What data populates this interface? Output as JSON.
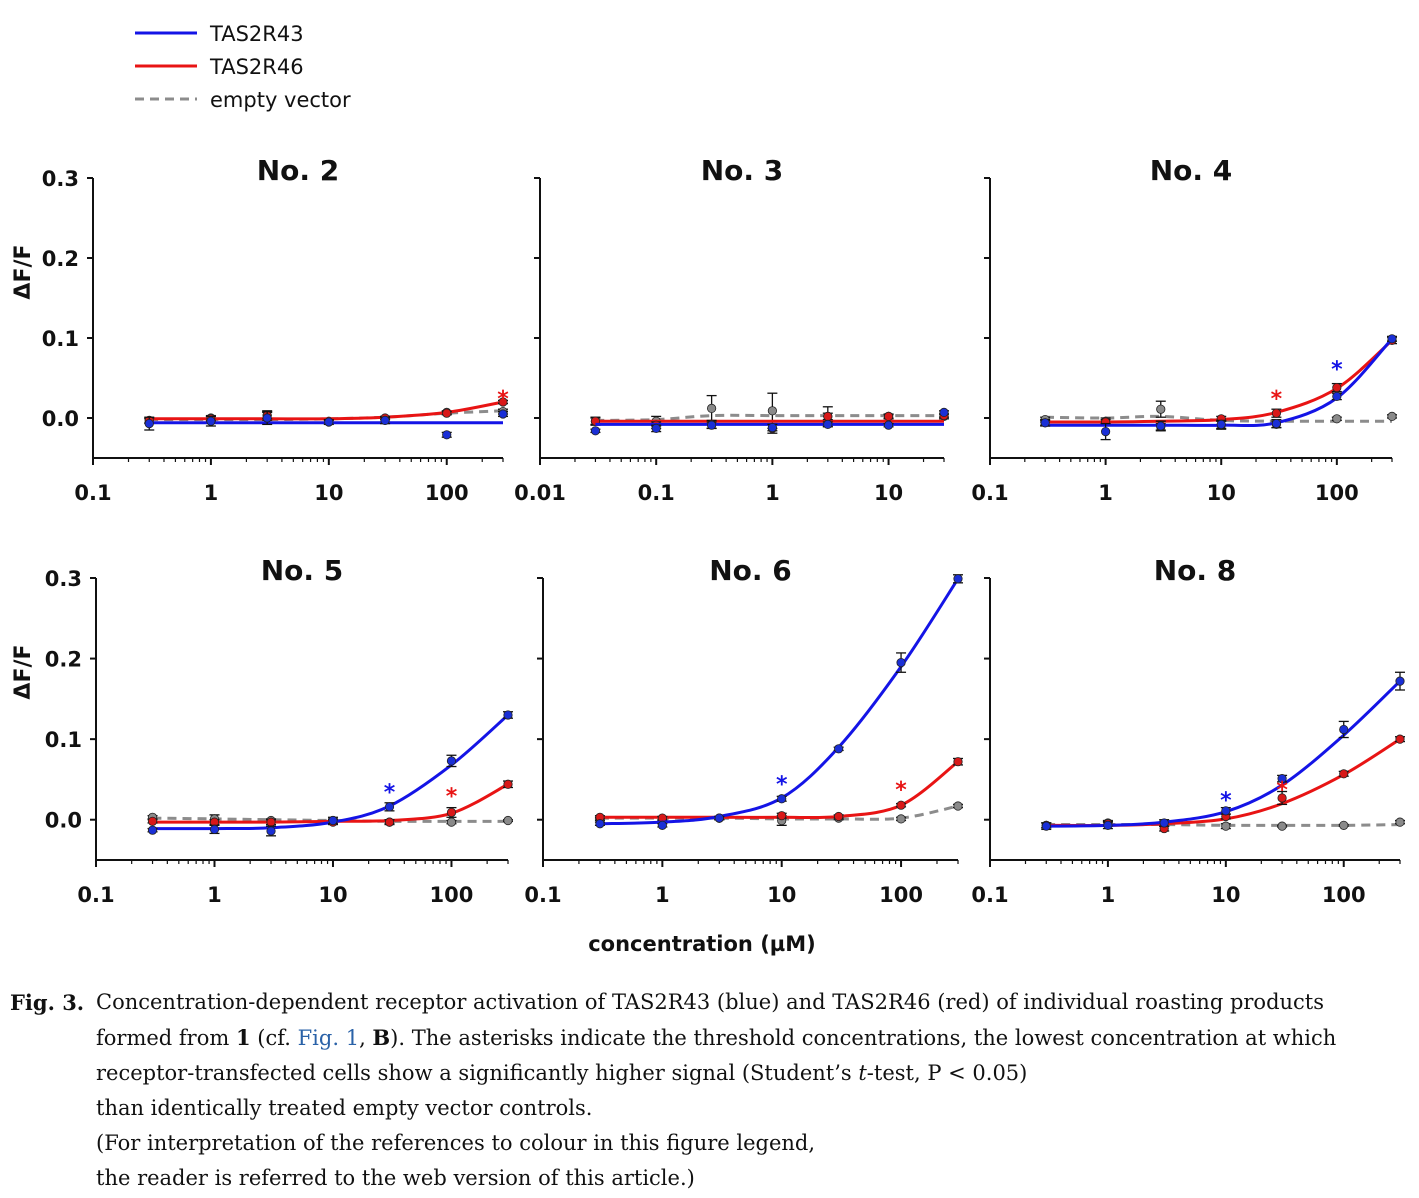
{
  "legend": [
    {
      "name": "TAS2R43",
      "color": "#1414e6",
      "style": "solid"
    },
    {
      "name": "TAS2R46",
      "color": "#e81414",
      "style": "solid"
    },
    {
      "name": "empty vector",
      "color": "#8c8c8c",
      "style": "dashed"
    }
  ],
  "y_axis_title": "ΔF/F",
  "x_axis_title": "concentration (µM)",
  "y_ticks": [
    "0.3",
    "0.2",
    "0.1",
    "0.0"
  ],
  "chart_data": [
    {
      "type": "scatter-line",
      "title": "No. 2",
      "xscale": "log",
      "xlim": [
        0.1,
        300
      ],
      "ylim": [
        -0.05,
        0.3
      ],
      "xtick_labels": [
        "0.1",
        "1",
        "10",
        "100"
      ],
      "x": [
        0.3,
        1,
        3,
        10,
        30,
        100,
        300
      ],
      "series": [
        {
          "name": "TAS2R43",
          "points": [
            -0.007,
            -0.004,
            0.0,
            -0.005,
            -0.003,
            -0.021,
            0.005
          ],
          "errors": [
            0.008,
            0.006,
            0.008,
            0.003,
            0.004,
            0.003,
            0.003
          ],
          "curve": [
            -0.006,
            -0.006,
            -0.006,
            -0.006,
            -0.006,
            -0.006,
            -0.006
          ]
        },
        {
          "name": "TAS2R46",
          "points": [
            -0.003,
            -0.001,
            0.003,
            -0.005,
            0.0,
            0.006,
            0.02
          ],
          "errors": [
            0.003,
            0.003,
            0.004,
            0.002,
            0.002,
            0.002,
            0.002
          ],
          "curve": [
            -0.001,
            -0.001,
            -0.001,
            -0.001,
            0.001,
            0.007,
            0.02
          ]
        },
        {
          "name": "empty vector",
          "points": [
            -0.004,
            0.0,
            0.003,
            -0.004,
            -0.003,
            0.007,
            0.008
          ],
          "errors": [
            0.003,
            0.003,
            0.006,
            0.002,
            0.002,
            0.002,
            0.003
          ],
          "curve": [
            -0.002,
            -0.002,
            -0.002,
            -0.001,
            0.001,
            0.006,
            0.009
          ]
        }
      ],
      "annotations": [
        {
          "text": "*",
          "x": 300,
          "y": 0.03,
          "series": "TAS2R46"
        }
      ]
    },
    {
      "type": "scatter-line",
      "title": "No. 3",
      "xscale": "log",
      "xlim": [
        0.01,
        30
      ],
      "ylim": [
        -0.05,
        0.3
      ],
      "xtick_labels": [
        "0.01",
        "0.1",
        "1",
        "10"
      ],
      "x": [
        0.03,
        0.1,
        0.3,
        1,
        3,
        10,
        30
      ],
      "series": [
        {
          "name": "TAS2R43",
          "points": [
            -0.016,
            -0.013,
            -0.009,
            -0.012,
            -0.008,
            -0.009,
            0.007
          ],
          "errors": [
            0.002,
            0.004,
            0.004,
            0.004,
            0.003,
            0.002,
            0.002
          ],
          "curve": [
            -0.008,
            -0.008,
            -0.008,
            -0.008,
            -0.008,
            -0.008,
            -0.008
          ]
        },
        {
          "name": "TAS2R46",
          "points": [
            -0.004,
            -0.009,
            -0.008,
            -0.013,
            0.002,
            0.002,
            0.003
          ],
          "errors": [
            0.004,
            0.004,
            0.005,
            0.006,
            0.004,
            0.002,
            0.002
          ],
          "curve": [
            -0.004,
            -0.004,
            -0.004,
            -0.004,
            -0.004,
            -0.004,
            -0.004
          ]
        },
        {
          "name": "empty vector",
          "points": [
            -0.004,
            -0.004,
            0.012,
            0.009,
            0.002,
            0.002,
            0.002
          ],
          "errors": [
            0.005,
            0.006,
            0.016,
            0.022,
            0.012,
            0.003,
            0.003
          ],
          "curve": [
            -0.003,
            -0.002,
            0.003,
            0.003,
            0.003,
            0.003,
            0.003
          ]
        }
      ],
      "annotations": []
    },
    {
      "type": "scatter-line",
      "title": "No. 4",
      "xscale": "log",
      "xlim": [
        0.1,
        300
      ],
      "ylim": [
        -0.05,
        0.3
      ],
      "xtick_labels": [
        "0.1",
        "1",
        "10",
        "100"
      ],
      "x": [
        0.3,
        1,
        3,
        10,
        30,
        100,
        300
      ],
      "series": [
        {
          "name": "TAS2R43",
          "points": [
            -0.006,
            -0.017,
            -0.01,
            -0.008,
            -0.007,
            0.027,
            0.099
          ],
          "errors": [
            0.004,
            0.01,
            0.006,
            0.005,
            0.005,
            0.004,
            0.003
          ],
          "curve": [
            -0.009,
            -0.009,
            -0.009,
            -0.009,
            -0.006,
            0.025,
            0.099
          ]
        },
        {
          "name": "TAS2R46",
          "points": [
            -0.006,
            -0.005,
            -0.011,
            -0.001,
            0.006,
            0.038,
            0.097
          ],
          "errors": [
            0.003,
            0.003,
            0.004,
            0.003,
            0.005,
            0.005,
            0.004
          ],
          "curve": [
            -0.005,
            -0.005,
            -0.004,
            -0.002,
            0.007,
            0.037,
            0.097
          ]
        },
        {
          "name": "empty vector",
          "points": [
            -0.002,
            -0.004,
            0.011,
            -0.009,
            -0.008,
            -0.001,
            0.002
          ],
          "errors": [
            0.003,
            0.004,
            0.01,
            0.005,
            0.004,
            0.002,
            0.002
          ],
          "curve": [
            0.001,
            0.0,
            0.002,
            -0.003,
            -0.004,
            -0.004,
            -0.004
          ]
        }
      ],
      "annotations": [
        {
          "text": "*",
          "x": 30,
          "y": 0.03,
          "series": "TAS2R46"
        },
        {
          "text": "*",
          "x": 100,
          "y": 0.067,
          "series": "TAS2R43"
        }
      ]
    },
    {
      "type": "scatter-line",
      "title": "No. 5",
      "xscale": "log",
      "xlim": [
        0.1,
        300
      ],
      "ylim": [
        -0.05,
        0.3
      ],
      "xtick_labels": [
        "0.1",
        "1",
        "10",
        "100"
      ],
      "x": [
        0.3,
        1,
        3,
        10,
        30,
        100,
        300
      ],
      "series": [
        {
          "name": "TAS2R43",
          "points": [
            -0.013,
            -0.012,
            -0.014,
            -0.001,
            0.016,
            0.073,
            0.13
          ],
          "errors": [
            0.002,
            0.005,
            0.006,
            0.004,
            0.005,
            0.007,
            0.004
          ],
          "curve": [
            -0.011,
            -0.011,
            -0.01,
            -0.003,
            0.017,
            0.068,
            0.13
          ]
        },
        {
          "name": "TAS2R46",
          "points": [
            -0.002,
            -0.003,
            -0.003,
            -0.003,
            -0.003,
            0.009,
            0.044
          ],
          "errors": [
            0.002,
            0.003,
            0.003,
            0.003,
            0.003,
            0.006,
            0.004
          ],
          "curve": [
            -0.003,
            -0.003,
            -0.003,
            -0.002,
            -0.001,
            0.008,
            0.044
          ]
        },
        {
          "name": "empty vector",
          "points": [
            0.003,
            0.001,
            -0.001,
            -0.001,
            -0.003,
            -0.003,
            -0.001
          ],
          "errors": [
            0.002,
            0.005,
            0.002,
            0.002,
            0.002,
            0.002,
            0.001
          ],
          "curve": [
            0.002,
            0.001,
            0.0,
            -0.001,
            -0.002,
            -0.002,
            -0.002
          ]
        }
      ],
      "annotations": [
        {
          "text": "*",
          "x": 30,
          "y": 0.04,
          "series": "TAS2R43"
        },
        {
          "text": "*",
          "x": 100,
          "y": 0.035,
          "series": "TAS2R46"
        }
      ]
    },
    {
      "type": "scatter-line",
      "title": "No. 6",
      "xscale": "log",
      "xlim": [
        0.1,
        300
      ],
      "ylim": [
        -0.05,
        0.3
      ],
      "xtick_labels": [
        "0.1",
        "1",
        "10",
        "100"
      ],
      "x": [
        0.3,
        1,
        3,
        10,
        30,
        100,
        300
      ],
      "series": [
        {
          "name": "TAS2R43",
          "points": [
            -0.005,
            -0.007,
            0.002,
            0.026,
            0.088,
            0.195,
            0.299
          ],
          "errors": [
            0.002,
            0.002,
            0.002,
            0.003,
            0.002,
            0.012,
            0.005
          ],
          "curve": [
            -0.005,
            -0.003,
            0.004,
            0.027,
            0.09,
            0.19,
            0.299
          ]
        },
        {
          "name": "TAS2R46",
          "points": [
            0.003,
            0.002,
            0.002,
            0.005,
            0.004,
            0.018,
            0.072
          ],
          "errors": [
            0.002,
            0.002,
            0.002,
            0.003,
            0.002,
            0.002,
            0.004
          ],
          "curve": [
            0.003,
            0.003,
            0.003,
            0.003,
            0.004,
            0.018,
            0.072
          ]
        },
        {
          "name": "empty vector",
          "points": [
            0.001,
            0.001,
            0.002,
            -0.001,
            0.002,
            0.001,
            0.017
          ],
          "errors": [
            0.002,
            0.002,
            0.002,
            0.006,
            0.002,
            0.002,
            0.002
          ],
          "curve": [
            0.002,
            0.002,
            0.002,
            0.001,
            0.001,
            0.002,
            0.017
          ]
        }
      ],
      "annotations": [
        {
          "text": "*",
          "x": 10,
          "y": 0.05,
          "series": "TAS2R43"
        },
        {
          "text": "*",
          "x": 100,
          "y": 0.043,
          "series": "TAS2R46"
        }
      ]
    },
    {
      "type": "scatter-line",
      "title": "No. 8",
      "xscale": "log",
      "xlim": [
        0.1,
        300
      ],
      "ylim": [
        -0.05,
        0.3
      ],
      "xtick_labels": [
        "0.1",
        "1",
        "10",
        "100"
      ],
      "x": [
        0.3,
        1,
        3,
        10,
        30,
        100,
        300
      ],
      "series": [
        {
          "name": "TAS2R43",
          "points": [
            -0.008,
            -0.007,
            -0.004,
            0.011,
            0.051,
            0.112,
            0.172
          ],
          "errors": [
            0.004,
            0.004,
            0.004,
            0.004,
            0.004,
            0.01,
            0.011
          ],
          "curve": [
            -0.008,
            -0.007,
            -0.003,
            0.01,
            0.043,
            0.105,
            0.172
          ]
        },
        {
          "name": "TAS2R46",
          "points": [
            -0.007,
            -0.005,
            -0.011,
            0.004,
            0.027,
            0.057,
            0.1
          ],
          "errors": [
            0.003,
            0.003,
            0.003,
            0.003,
            0.008,
            0.003,
            0.003
          ],
          "curve": [
            -0.007,
            -0.007,
            -0.005,
            0.001,
            0.02,
            0.056,
            0.1
          ]
        },
        {
          "name": "empty vector",
          "points": [
            -0.007,
            -0.004,
            -0.005,
            -0.008,
            -0.008,
            -0.007,
            -0.003
          ],
          "errors": [
            0.003,
            0.003,
            0.003,
            0.003,
            0.001,
            0.001,
            0.002
          ],
          "curve": [
            -0.006,
            -0.006,
            -0.006,
            -0.007,
            -0.007,
            -0.007,
            -0.006
          ]
        }
      ],
      "annotations": [
        {
          "text": "*",
          "x": 10,
          "y": 0.03,
          "series": "TAS2R43"
        },
        {
          "text": "*",
          "x": 30,
          "y": 0.043,
          "series": "TAS2R46"
        }
      ]
    }
  ],
  "caption": {
    "label": "Fig. 3.",
    "line1": "Concentration-dependent receptor activation of TAS2R43 (blue) and TAS2R46 (red) of individual roasting products",
    "line2_a": "formed from ",
    "line2_bold1": "1",
    "line2_b": " (cf. ",
    "line2_link": "Fig. 1",
    "line2_c": ", ",
    "line2_bold2": "B",
    "line2_d": "). The asterisks indicate the threshold concentrations, the lowest concentration at which",
    "line3_a": "receptor-transfected cells show a significantly higher signal (Student’s ",
    "line3_italic": "t",
    "line3_b": "-test, P < 0.05)",
    "line4": "than identically treated empty vector controls.",
    "line5": "(For interpretation of the references to colour in this figure legend,",
    "line6": " the reader is referred to the web version of  this article.)"
  }
}
